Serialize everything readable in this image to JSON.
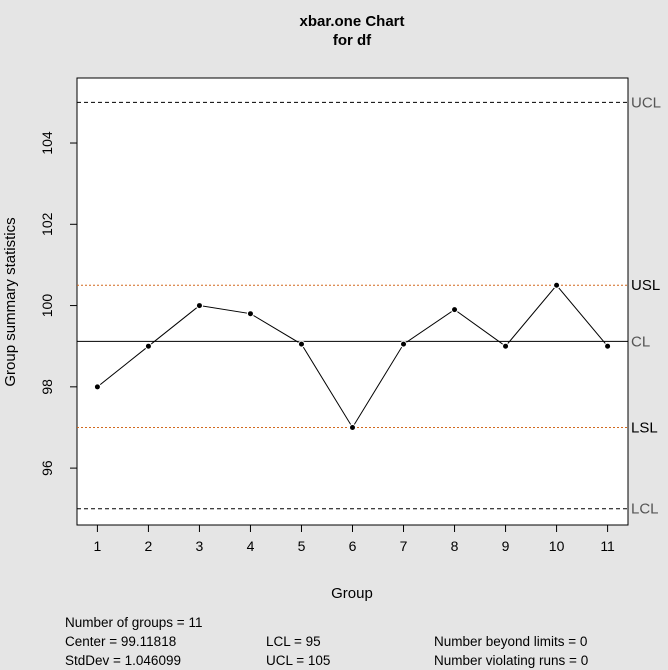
{
  "chart_data": {
    "type": "line",
    "title_line1": "xbar.one Chart",
    "title_line2": "for df",
    "xlabel": "Group",
    "ylabel": "Group summary statistics",
    "x": [
      1,
      2,
      3,
      4,
      5,
      6,
      7,
      8,
      9,
      10,
      11
    ],
    "x_tick_labels": [
      "1",
      "2",
      "3",
      "4",
      "5",
      "6",
      "7",
      "8",
      "9",
      "10",
      "11"
    ],
    "y": [
      98,
      99,
      100,
      99.8,
      99.05,
      97,
      99.05,
      99.9,
      99,
      100.5,
      99
    ],
    "ylim": [
      94.6,
      105.6
    ],
    "xlim": [
      0.6,
      11.4
    ],
    "y_ticks": [
      96,
      98,
      100,
      102,
      104
    ],
    "y_tick_labels": [
      "96",
      "98",
      "100",
      "102",
      "104"
    ],
    "limits": [
      {
        "name": "UCL",
        "value": 105,
        "style": "dashed",
        "color": "#000000",
        "label_color": "#555555"
      },
      {
        "name": "USL",
        "value": 100.5,
        "style": "dotted",
        "color": "#d2691e",
        "label_color": "#000000"
      },
      {
        "name": "CL",
        "value": 99.11818,
        "style": "solid",
        "color": "#000000",
        "label_color": "#555555"
      },
      {
        "name": "LSL",
        "value": 97,
        "style": "dotted",
        "color": "#d2691e",
        "label_color": "#000000"
      },
      {
        "name": "LCL",
        "value": 95,
        "style": "dashed",
        "color": "#000000",
        "label_color": "#555555"
      }
    ],
    "grid": false,
    "legend": "none"
  },
  "stats": {
    "groups": "Number of groups = 11",
    "center": "Center = 99.11818",
    "stddev": "StdDev = 1.046099",
    "lcl": "LCL = 95",
    "ucl": "UCL = 105",
    "beyond": "Number beyond limits = 0",
    "runs": "Number violating runs = 0"
  }
}
